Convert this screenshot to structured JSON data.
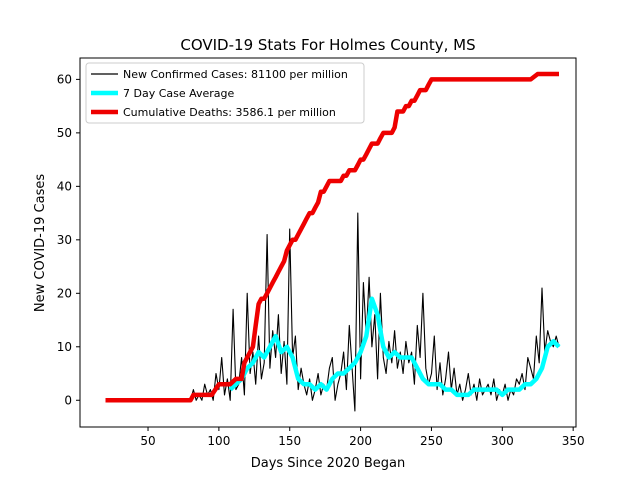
{
  "chart_data": {
    "type": "line",
    "title": "COVID-19 Stats For Holmes County, MS",
    "xlabel": "Days Since 2020 Began",
    "ylabel": "New COVID-19 Cases",
    "xlim": [
      2,
      352
    ],
    "ylim": [
      -5,
      64
    ],
    "xticks": [
      50,
      100,
      150,
      200,
      250,
      300,
      350
    ],
    "yticks": [
      0,
      10,
      20,
      30,
      40,
      50,
      60
    ],
    "grid": false,
    "legend_position": "upper-left",
    "series": [
      {
        "name": "New Confirmed Cases: 81100 per million",
        "color": "#000000",
        "style": "thin",
        "x": [
          80,
          82,
          84,
          86,
          88,
          90,
          92,
          94,
          96,
          98,
          100,
          102,
          104,
          106,
          108,
          110,
          112,
          114,
          116,
          118,
          120,
          122,
          124,
          126,
          128,
          130,
          132,
          134,
          136,
          138,
          140,
          142,
          144,
          146,
          148,
          150,
          152,
          154,
          156,
          158,
          160,
          162,
          164,
          166,
          168,
          170,
          172,
          174,
          176,
          178,
          180,
          182,
          184,
          186,
          188,
          190,
          192,
          194,
          196,
          198,
          200,
          202,
          204,
          206,
          208,
          210,
          212,
          214,
          216,
          218,
          220,
          222,
          224,
          226,
          228,
          230,
          232,
          234,
          236,
          238,
          240,
          242,
          244,
          246,
          248,
          250,
          252,
          254,
          256,
          258,
          260,
          262,
          264,
          266,
          268,
          270,
          272,
          274,
          276,
          278,
          280,
          282,
          284,
          286,
          288,
          290,
          292,
          294,
          296,
          298,
          300,
          302,
          304,
          306,
          308,
          310,
          312,
          314,
          316,
          318,
          320,
          322,
          324,
          326,
          328,
          330,
          332,
          334,
          336,
          338,
          340
        ],
        "values": [
          0,
          2,
          0,
          1,
          0,
          3,
          1,
          2,
          0,
          5,
          2,
          8,
          1,
          4,
          0,
          17,
          2,
          3,
          8,
          1,
          20,
          5,
          9,
          3,
          12,
          4,
          7,
          31,
          6,
          13,
          8,
          16,
          5,
          11,
          3,
          32,
          8,
          12,
          2,
          6,
          3,
          1,
          4,
          0,
          2,
          5,
          1,
          3,
          2,
          6,
          8,
          0,
          3,
          5,
          9,
          2,
          14,
          6,
          -2,
          35,
          4,
          22,
          12,
          23,
          10,
          16,
          4,
          20,
          8,
          5,
          11,
          7,
          13,
          6,
          9,
          5,
          11,
          7,
          9,
          3,
          14,
          8,
          20,
          6,
          3,
          5,
          12,
          2,
          7,
          1,
          4,
          9,
          2,
          6,
          1,
          3,
          0,
          2,
          5,
          1,
          3,
          0,
          4,
          1,
          2,
          3,
          1,
          4,
          0,
          2,
          1,
          3,
          0,
          2,
          1,
          4,
          3,
          5,
          2,
          8,
          6,
          4,
          12,
          7,
          21,
          9,
          13,
          11,
          10,
          12,
          10
        ],
        "note_values_approx": true
      },
      {
        "name": "7 Day Case Average",
        "color": "#00ffff",
        "style": "thick",
        "x": [
          108,
          112,
          116,
          120,
          124,
          128,
          132,
          136,
          140,
          144,
          148,
          152,
          156,
          160,
          164,
          168,
          172,
          176,
          180,
          184,
          188,
          192,
          196,
          200,
          204,
          208,
          212,
          216,
          220,
          224,
          228,
          232,
          236,
          240,
          244,
          248,
          252,
          256,
          260,
          264,
          268,
          272,
          276,
          280,
          284,
          288,
          292,
          296,
          300,
          304,
          308,
          312,
          316,
          320,
          324,
          328,
          332,
          336,
          340
        ],
        "values": [
          2,
          3,
          4,
          6,
          7,
          9,
          8,
          10,
          12,
          9,
          10,
          8,
          4,
          3,
          3,
          2,
          3,
          2,
          4,
          5,
          5,
          6,
          7,
          9,
          12,
          19,
          16,
          10,
          8,
          9,
          8,
          8,
          8,
          6,
          4,
          3,
          3,
          3,
          2,
          2,
          1,
          1,
          1,
          2,
          2,
          2,
          2,
          2,
          1,
          2,
          2,
          2,
          3,
          3,
          4,
          6,
          10,
          11,
          10
        ]
      },
      {
        "name": "Cumulative Deaths: 3586.1 per million",
        "color": "#ee0000",
        "style": "thick",
        "x": [
          20,
          40,
          60,
          80,
          82,
          85,
          90,
          95,
          100,
          104,
          108,
          112,
          116,
          118,
          120,
          122,
          124,
          126,
          128,
          130,
          132,
          134,
          136,
          138,
          140,
          142,
          144,
          146,
          148,
          150,
          152,
          154,
          156,
          158,
          160,
          162,
          164,
          166,
          168,
          170,
          172,
          174,
          176,
          178,
          180,
          182,
          184,
          186,
          188,
          190,
          192,
          194,
          196,
          198,
          200,
          202,
          204,
          206,
          208,
          210,
          212,
          214,
          216,
          218,
          220,
          222,
          224,
          226,
          228,
          230,
          232,
          234,
          236,
          238,
          240,
          242,
          244,
          246,
          248,
          250,
          252,
          254,
          256,
          258,
          260,
          262,
          264,
          266,
          268,
          270,
          272,
          274,
          276,
          278,
          280,
          290,
          300,
          310,
          320,
          325,
          330,
          340
        ],
        "values": [
          0,
          0,
          0,
          0,
          1,
          1,
          1,
          1,
          3,
          3,
          3,
          4,
          4,
          7,
          8,
          9,
          10,
          14,
          18,
          19,
          19,
          20,
          21,
          22,
          23,
          24,
          25,
          26,
          28,
          29,
          30,
          30,
          31,
          32,
          33,
          34,
          35,
          35,
          36,
          37,
          39,
          39,
          40,
          41,
          41,
          41,
          41,
          41,
          42,
          42,
          43,
          43,
          43,
          44,
          45,
          45,
          46,
          47,
          48,
          48,
          48,
          49,
          50,
          50,
          50,
          50,
          51,
          54,
          54,
          54,
          55,
          55,
          56,
          56,
          57,
          58,
          58,
          58,
          59,
          60,
          60,
          60,
          60,
          60,
          60,
          60,
          60,
          60,
          60,
          60,
          60,
          60,
          60,
          60,
          60,
          60,
          60,
          60,
          60,
          61,
          61,
          61
        ]
      }
    ]
  }
}
